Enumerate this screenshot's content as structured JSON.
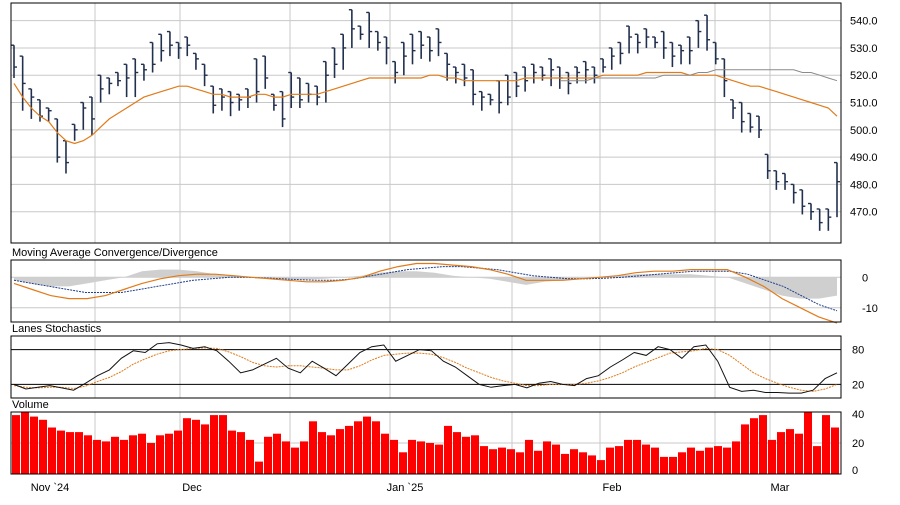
{
  "colors": {
    "price_bar": "#22304f",
    "ma_fast": "#e07b1a",
    "ma_slow": "#8a8a8a",
    "macd_hist": "#cfcfcf",
    "macd_line": "#e07b1a",
    "macd_signal": "#1f3f8a",
    "stoch_k": "#111111",
    "stoch_d": "#e07b1a",
    "volume_bar": "#ff0000",
    "grid": "#c8c8c8",
    "frame": "#000000"
  },
  "chart_data": {
    "type": "financial",
    "x_tick_labels": [
      "Nov `24",
      "Dec",
      "Jan `25",
      "Feb",
      "Mar"
    ],
    "panels": [
      {
        "id": "price",
        "type": "ohlc",
        "ylim": [
          460,
          545
        ],
        "y_ticks": [
          470,
          480,
          490,
          500,
          510,
          520,
          530,
          540
        ],
        "ohlc": [
          [
            531,
            531,
            519,
            523
          ],
          [
            527,
            527,
            507,
            517
          ],
          [
            515,
            515,
            504,
            512
          ],
          [
            511,
            511,
            503,
            505
          ],
          [
            508,
            508,
            503,
            507
          ],
          [
            504,
            504,
            488,
            490
          ],
          [
            496,
            496,
            484,
            488
          ],
          [
            502,
            502,
            496,
            500
          ],
          [
            510,
            510,
            500,
            508
          ],
          [
            512,
            512,
            498,
            504
          ],
          [
            520,
            520,
            510,
            515
          ],
          [
            519,
            519,
            513,
            517
          ],
          [
            521,
            521,
            516,
            518
          ],
          [
            524,
            524,
            512,
            519
          ],
          [
            526,
            526,
            512,
            521
          ],
          [
            524,
            524,
            518,
            522
          ],
          [
            532,
            532,
            521,
            524
          ],
          [
            535,
            535,
            525,
            529
          ],
          [
            536,
            536,
            527,
            531
          ],
          [
            532,
            532,
            526,
            530
          ],
          [
            534,
            534,
            527,
            531
          ],
          [
            528,
            528,
            522,
            526
          ],
          [
            524,
            524,
            516,
            520
          ],
          [
            516,
            516,
            506,
            509
          ],
          [
            515,
            515,
            507,
            512
          ],
          [
            514,
            514,
            505,
            510
          ],
          [
            513,
            513,
            507,
            511
          ],
          [
            515,
            515,
            508,
            512
          ],
          [
            526,
            526,
            510,
            514
          ],
          [
            527,
            527,
            515,
            519
          ],
          [
            513,
            513,
            507,
            509
          ],
          [
            514,
            514,
            501,
            504
          ],
          [
            521,
            521,
            508,
            512
          ],
          [
            519,
            519,
            508,
            511
          ],
          [
            517,
            517,
            510,
            513
          ],
          [
            516,
            516,
            509,
            512
          ],
          [
            525,
            525,
            510,
            520
          ],
          [
            530,
            530,
            519,
            524
          ],
          [
            535,
            535,
            522,
            530
          ],
          [
            544,
            544,
            530,
            537
          ],
          [
            538,
            538,
            533,
            535
          ],
          [
            543,
            543,
            530,
            536
          ],
          [
            536,
            536,
            529,
            532
          ],
          [
            534,
            534,
            524,
            530
          ],
          [
            525,
            525,
            517,
            521
          ],
          [
            532,
            532,
            520,
            527
          ],
          [
            535,
            535,
            524,
            529
          ],
          [
            536,
            536,
            526,
            531
          ],
          [
            534,
            534,
            525,
            529
          ],
          [
            537,
            537,
            527,
            532
          ],
          [
            528,
            528,
            518,
            524
          ],
          [
            523,
            523,
            517,
            521
          ],
          [
            524,
            524,
            516,
            519
          ],
          [
            522,
            522,
            509,
            513
          ],
          [
            514,
            514,
            507,
            512
          ],
          [
            513,
            513,
            509,
            511
          ],
          [
            518,
            518,
            506,
            510
          ],
          [
            520,
            520,
            509,
            512
          ],
          [
            521,
            521,
            512,
            516
          ],
          [
            523,
            523,
            514,
            518
          ],
          [
            524,
            524,
            517,
            521
          ],
          [
            523,
            523,
            518,
            520
          ],
          [
            526,
            526,
            516,
            522
          ],
          [
            523,
            523,
            515,
            519
          ],
          [
            521,
            521,
            513,
            517
          ],
          [
            523,
            523,
            517,
            521
          ],
          [
            525,
            525,
            517,
            522
          ],
          [
            523,
            523,
            517,
            520
          ],
          [
            526,
            526,
            521,
            523
          ],
          [
            530,
            530,
            522,
            527
          ],
          [
            532,
            532,
            524,
            528
          ],
          [
            538,
            538,
            528,
            534
          ],
          [
            535,
            535,
            528,
            532
          ],
          [
            537,
            537,
            530,
            534
          ],
          [
            534,
            534,
            530,
            532
          ],
          [
            536,
            536,
            526,
            530
          ],
          [
            532,
            532,
            523,
            527
          ],
          [
            531,
            531,
            524,
            529
          ],
          [
            534,
            534,
            524,
            529
          ],
          [
            540,
            540,
            530,
            536
          ],
          [
            542,
            542,
            529,
            533
          ],
          [
            532,
            532,
            524,
            526
          ],
          [
            526,
            526,
            512,
            518
          ],
          [
            511,
            511,
            504,
            508
          ],
          [
            510,
            510,
            499,
            503
          ],
          [
            506,
            506,
            499,
            501
          ],
          [
            505,
            505,
            497,
            500
          ],
          [
            491,
            491,
            482,
            485
          ],
          [
            485,
            485,
            478,
            481
          ],
          [
            484,
            484,
            478,
            481
          ],
          [
            480,
            480,
            473,
            477
          ],
          [
            478,
            478,
            469,
            472
          ],
          [
            473,
            473,
            467,
            470
          ],
          [
            471,
            471,
            463,
            466
          ],
          [
            471,
            471,
            463,
            468
          ],
          [
            488,
            488,
            468,
            481
          ]
        ],
        "series": [
          {
            "name": "",
            "role": "ma_fast",
            "values": [
              517,
              512,
              508,
              505,
              503,
              499,
              496,
              495,
              496,
              498,
              501,
              504,
              506,
              508,
              510,
              512,
              513,
              514,
              515,
              516,
              516,
              515,
              514,
              513,
              513,
              512,
              512,
              512,
              513,
              513,
              512,
              512,
              513,
              513,
              513,
              513,
              514,
              515,
              516,
              517,
              518,
              519,
              519,
              519,
              519,
              519,
              519,
              519,
              520,
              520,
              519,
              519,
              518,
              518,
              518,
              518,
              518,
              518,
              518,
              519,
              519,
              519,
              519,
              519,
              519,
              519,
              519,
              519,
              520,
              520,
              520,
              520,
              520,
              521,
              521,
              521,
              521,
              521,
              520,
              520,
              520,
              520,
              519,
              518,
              517,
              516,
              516,
              515,
              514,
              513,
              512,
              511,
              510,
              509,
              508,
              505
            ]
          },
          {
            "name": "",
            "role": "ma_slow",
            "values": [
              518,
              518,
              518,
              518,
              519,
              519,
              519,
              519,
              519,
              519,
              519,
              519,
              520,
              520,
              520,
              520,
              521,
              521,
              522,
              522,
              522,
              522,
              522,
              522,
              522,
              522,
              522,
              522,
              521,
              521,
              520,
              519,
              518
            ]
          }
        ]
      },
      {
        "id": "macd",
        "title": "Moving Average Convergence/Divergence",
        "ylim": [
          -14,
          5
        ],
        "y_ticks": [
          0,
          -10
        ],
        "series": [
          {
            "name": "",
            "role": "macd_line",
            "values": [
              -2,
              -4,
              -6,
              -7,
              -7,
              -6,
              -4,
              -2,
              -0.5,
              0.5,
              1,
              1,
              0.5,
              0,
              -0.5,
              -1,
              -1.5,
              -1.5,
              -1,
              0,
              2,
              3.5,
              4.5,
              4.5,
              4,
              3.5,
              2.5,
              1,
              -1,
              -1,
              -1,
              -0.5,
              0,
              0.5,
              1.5,
              2,
              2,
              2.5,
              2.5,
              2.5,
              0,
              -3,
              -7,
              -10,
              -13,
              -15
            ]
          },
          {
            "name": "",
            "role": "macd_signal",
            "values": [
              -1,
              -2,
              -3,
              -4,
              -5,
              -5,
              -5,
              -4,
              -3,
              -2,
              -1,
              -0.5,
              0,
              0,
              -0.2,
              -0.5,
              -0.8,
              -1,
              -1,
              -0.5,
              0.5,
              1.5,
              2.5,
              3,
              3.5,
              3.5,
              3,
              2.5,
              1.5,
              0.5,
              0,
              -0.5,
              -0.5,
              -0.3,
              0,
              0.5,
              1,
              1.5,
              2,
              2,
              2,
              1,
              -1,
              -3,
              -6,
              -9,
              -11
            ]
          },
          {
            "name": "",
            "role": "macd_histogram",
            "values": [
              -1,
              -2,
              -3,
              -3,
              -2,
              -1,
              0,
              2,
              2.5,
              2.5,
              2,
              1,
              0.5,
              0,
              -0.3,
              -0.5,
              -0.7,
              -0.5,
              0,
              0.5,
              1.5,
              2,
              2,
              1.5,
              0.5,
              0,
              -0.5,
              -1.5,
              -2.5,
              -1.5,
              -1,
              -0.5,
              0,
              0.5,
              1,
              1,
              1,
              1,
              0.5,
              0,
              -2,
              -4,
              -6,
              -7,
              -7,
              -6
            ]
          }
        ]
      },
      {
        "id": "stochastics",
        "title": "Lanes Stochastics",
        "ylim": [
          0,
          100
        ],
        "y_ticks": [
          80,
          20
        ],
        "series": [
          {
            "name": "",
            "role": "stoch_k",
            "values": [
              20,
              12,
              15,
              18,
              14,
              10,
              22,
              35,
              45,
              65,
              78,
              75,
              90,
              92,
              88,
              82,
              85,
              78,
              60,
              40,
              45,
              55,
              65,
              48,
              40,
              60,
              48,
              35,
              55,
              75,
              85,
              88,
              60,
              70,
              80,
              78,
              60,
              50,
              35,
              20,
              15,
              18,
              20,
              14,
              22,
              25,
              20,
              18,
              30,
              35,
              50,
              62,
              75,
              70,
              85,
              80,
              65,
              85,
              88,
              60,
              15,
              8,
              10,
              6,
              6,
              5,
              5,
              10,
              30,
              40
            ]
          },
          {
            "name": "",
            "role": "stoch_d",
            "values": [
              18,
              15,
              14,
              15,
              15,
              13,
              17,
              25,
              32,
              42,
              55,
              64,
              72,
              78,
              80,
              82,
              83,
              82,
              76,
              68,
              58,
              52,
              50,
              52,
              52,
              50,
              48,
              45,
              45,
              52,
              62,
              70,
              72,
              74,
              74,
              72,
              66,
              58,
              48,
              40,
              32,
              26,
              22,
              18,
              18,
              20,
              20,
              20,
              22,
              26,
              32,
              40,
              50,
              58,
              66,
              74,
              76,
              78,
              82,
              80,
              70,
              55,
              40,
              30,
              22,
              15,
              10,
              8,
              12,
              20
            ]
          }
        ]
      },
      {
        "id": "volume",
        "title": "Volume",
        "type": "bar",
        "ylim": [
          0,
          40
        ],
        "y_ticks": [
          40,
          20,
          0
        ],
        "values": [
          38,
          40,
          37,
          35,
          30,
          28,
          27,
          27,
          25,
          22,
          21,
          24,
          22,
          25,
          26,
          20,
          25,
          26,
          28,
          36,
          35,
          32,
          38,
          38,
          28,
          27,
          22,
          8,
          24,
          26,
          21,
          17,
          21,
          34,
          27,
          25,
          29,
          31,
          34,
          37,
          34,
          26,
          22,
          14,
          22,
          21,
          20,
          19,
          31,
          27,
          24,
          25,
          18,
          16,
          17,
          16,
          14,
          22,
          15,
          21,
          19,
          13,
          16,
          14,
          12,
          9,
          17,
          18,
          22,
          22,
          19,
          17,
          11,
          11,
          14,
          17,
          15,
          17,
          18,
          17,
          21,
          32,
          36,
          38,
          22,
          27,
          29,
          26,
          40,
          18,
          38,
          30
        ]
      }
    ]
  }
}
